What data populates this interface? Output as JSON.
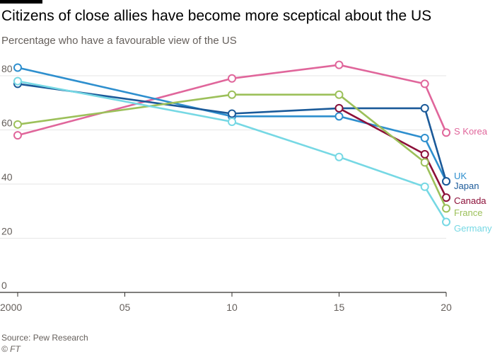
{
  "header": {
    "title": "Citizens of close allies have become more sceptical about the US",
    "subtitle": "Percentage who have a favourable view of the US"
  },
  "footer": {
    "source": "Source: Pew Research",
    "copyright": "© FT"
  },
  "chart_data": {
    "type": "line",
    "title": "Citizens of close allies have become more sceptical about the US",
    "subtitle": "Percentage who have a favourable view of the US",
    "xlabel": "",
    "ylabel": "",
    "x_ticks": [
      {
        "value": 2000,
        "label": "2000"
      },
      {
        "value": 2005,
        "label": "05"
      },
      {
        "value": 2010,
        "label": "10"
      },
      {
        "value": 2015,
        "label": "15"
      },
      {
        "value": 2020,
        "label": "20"
      }
    ],
    "y_ticks": [
      0,
      20,
      40,
      60,
      80
    ],
    "xlim": [
      2000,
      2020
    ],
    "ylim": [
      0,
      86
    ],
    "grid": "horizontal",
    "legend": "labels at line ends",
    "series": [
      {
        "name": "S Korea",
        "color": "#e0669b",
        "x": [
          2000,
          2010,
          2015,
          2019,
          2020
        ],
        "values": [
          58,
          79,
          84,
          77,
          59
        ]
      },
      {
        "name": "UK",
        "color": "#2e8fce",
        "x": [
          2000,
          2010,
          2015,
          2019,
          2020
        ],
        "values": [
          83,
          65,
          65,
          57,
          41
        ]
      },
      {
        "name": "Japan",
        "color": "#1b5a99",
        "x": [
          2000,
          2010,
          2015,
          2019,
          2020
        ],
        "values": [
          77,
          66,
          68,
          68,
          41
        ]
      },
      {
        "name": "Canada",
        "color": "#8c1039",
        "x": [
          2015,
          2019,
          2020
        ],
        "values": [
          68,
          51,
          35
        ]
      },
      {
        "name": "France",
        "color": "#9cc05a",
        "x": [
          2000,
          2010,
          2015,
          2019,
          2020
        ],
        "values": [
          62,
          73,
          73,
          48,
          31
        ]
      },
      {
        "name": "Germany",
        "color": "#76d8e4",
        "x": [
          2000,
          2010,
          2015,
          2019,
          2020
        ],
        "values": [
          78,
          63,
          50,
          39,
          26
        ]
      }
    ]
  }
}
